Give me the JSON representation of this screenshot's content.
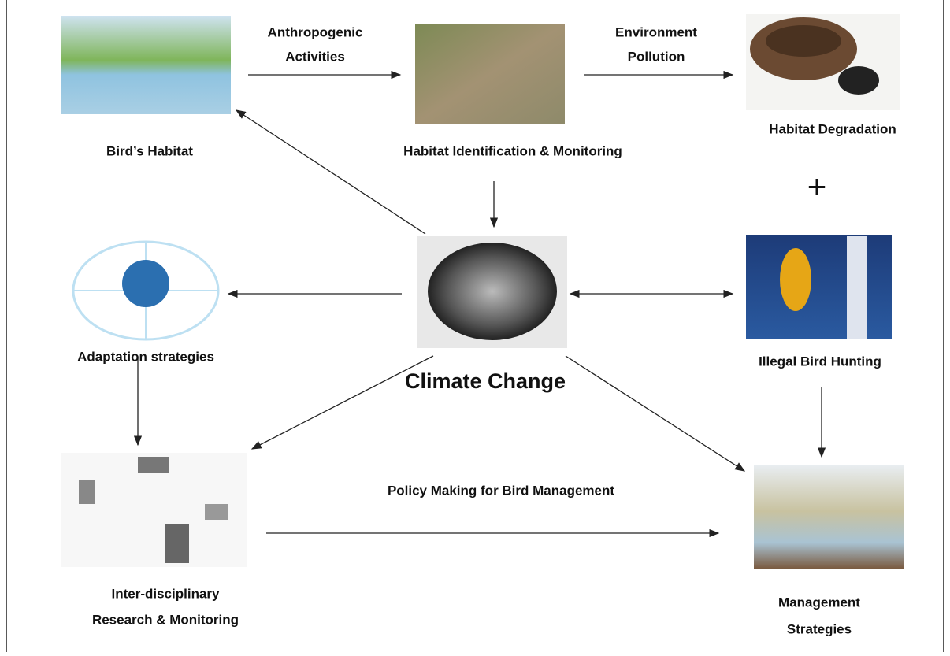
{
  "nodes": [
    {
      "label": [
        "Bird’s Habitat"
      ]
    },
    {
      "label": [
        "Habitat Identification & Monitoring"
      ]
    },
    {
      "label": [
        "Habitat Degradation"
      ]
    },
    {
      "label": [
        "Illegal Bird Hunting"
      ]
    },
    {
      "label": [
        "Climate Change"
      ]
    },
    {
      "label": [
        "Adaptation strategies"
      ]
    },
    {
      "label": [
        "Inter-disciplinary",
        "Research & Monitoring"
      ]
    },
    {
      "label": [
        "Management",
        "Strategies"
      ]
    }
  ],
  "operator": "+",
  "edges": [
    {
      "label": [
        "Anthropogenic",
        "Activities"
      ]
    },
    {
      "label": [
        "Environment",
        "Pollution"
      ]
    },
    {
      "label": [
        "Policy Making for Bird Management"
      ]
    }
  ]
}
